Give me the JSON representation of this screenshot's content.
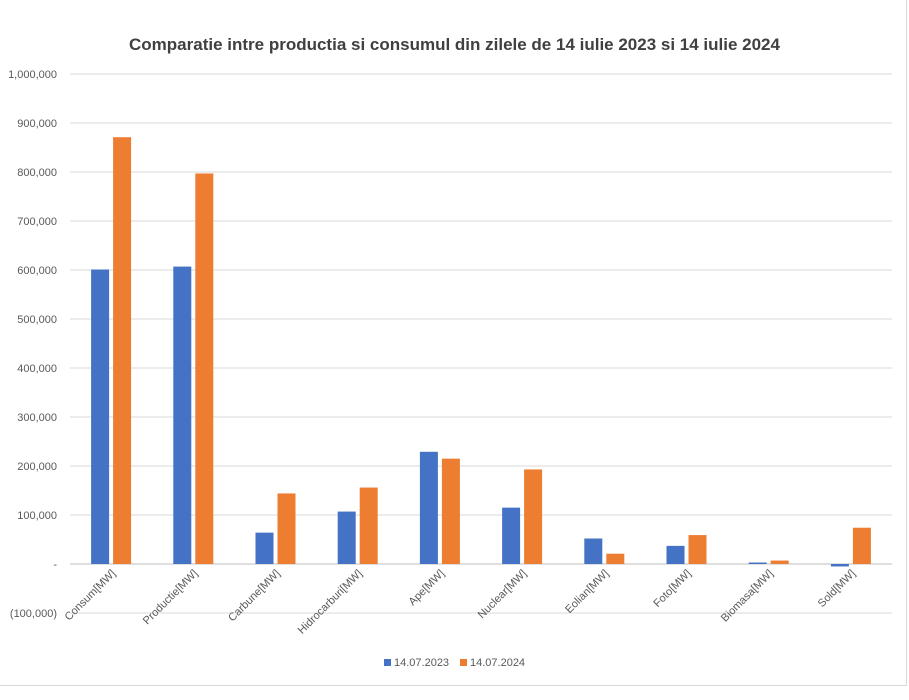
{
  "chart_data": {
    "type": "bar",
    "title": "Comparatie intre productia si consumul din zilele de 14 iulie 2023 si 14 iulie 2024",
    "xlabel": "",
    "ylabel": "",
    "ylim": [
      -100000,
      1000000
    ],
    "y_ticks": [
      -100000,
      0,
      100000,
      200000,
      300000,
      400000,
      500000,
      600000,
      700000,
      800000,
      900000,
      1000000
    ],
    "y_tick_labels": [
      "(100,000)",
      "-",
      "100,000",
      "200,000",
      "300,000",
      "400,000",
      "500,000",
      "600,000",
      "700,000",
      "800,000",
      "900,000",
      "1,000,000"
    ],
    "grid": true,
    "legend_position": "bottom",
    "categories": [
      "Consum[MW]",
      "Productie[MW]",
      "Carbune[MW]",
      "Hidrocarburi[MW]",
      "Ape[MW]",
      "Nuclear[MW]",
      "Eolian[MW]",
      "Foto[MW]",
      "Biomasa[MW]",
      "Sold[MW]"
    ],
    "series": [
      {
        "name": "14.07.2023",
        "color": "#4472c4",
        "values": [
          601000,
          607000,
          64000,
          107000,
          229000,
          115000,
          52000,
          37000,
          3000,
          -5000
        ]
      },
      {
        "name": "14.07.2024",
        "color": "#ed7d31",
        "values": [
          871000,
          797000,
          144000,
          156000,
          215000,
          193000,
          21000,
          59000,
          7000,
          74000
        ]
      }
    ]
  }
}
